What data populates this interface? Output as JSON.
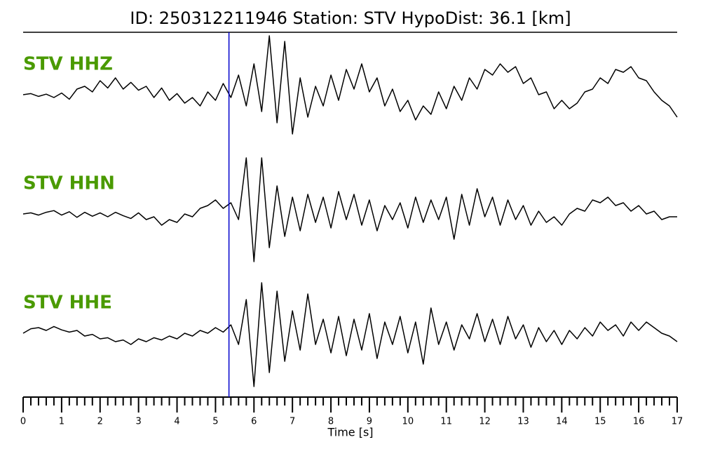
{
  "chart_data": {
    "type": "line",
    "title": "ID: 250312211946   Station: STV   HypoDist:    36.1 [km]",
    "xlabel": "Time [s]",
    "xlim": [
      0,
      17
    ],
    "xticks": [
      0,
      1,
      2,
      3,
      4,
      5,
      6,
      7,
      8,
      9,
      10,
      11,
      12,
      13,
      14,
      15,
      16,
      17
    ],
    "xminorticks": [
      0.2,
      0.4,
      0.6,
      0.8,
      1.2,
      1.4,
      1.6,
      1.8,
      2.2,
      2.4,
      2.6,
      2.8,
      3.2,
      3.4,
      3.6,
      3.8,
      4.2,
      4.4,
      4.6,
      4.8,
      5.2,
      5.4,
      5.6,
      5.8,
      6.2,
      6.4,
      6.6,
      6.8,
      7.2,
      7.4,
      7.6,
      7.8,
      8.2,
      8.4,
      8.6,
      8.8,
      9.2,
      9.4,
      9.6,
      9.8,
      10.2,
      10.4,
      10.6,
      10.8,
      11.2,
      11.4,
      11.6,
      11.8,
      12.2,
      12.4,
      12.6,
      12.8,
      13.2,
      13.4,
      13.6,
      13.8,
      14.2,
      14.4,
      14.6,
      14.8,
      15.2,
      15.4,
      15.6,
      15.8,
      16.2,
      16.4,
      16.6,
      16.8
    ],
    "marker": {
      "x": 5.35,
      "color": "#0000cc"
    },
    "label_color": "#4a9a00",
    "x": [
      0,
      0.2,
      0.4,
      0.6,
      0.8,
      1,
      1.2,
      1.4,
      1.6,
      1.8,
      2,
      2.2,
      2.4,
      2.6,
      2.8,
      3,
      3.2,
      3.4,
      3.6,
      3.8,
      4,
      4.2,
      4.4,
      4.6,
      4.8,
      5,
      5.2,
      5.4,
      5.6,
      5.8,
      6,
      6.2,
      6.4,
      6.6,
      6.8,
      7,
      7.2,
      7.4,
      7.6,
      7.8,
      8,
      8.2,
      8.4,
      8.6,
      8.8,
      9,
      9.2,
      9.4,
      9.6,
      9.8,
      10,
      10.2,
      10.4,
      10.6,
      10.8,
      11,
      11.2,
      11.4,
      11.6,
      11.8,
      12,
      12.2,
      12.4,
      12.6,
      12.8,
      13,
      13.2,
      13.4,
      13.6,
      13.8,
      14,
      14.2,
      14.4,
      14.6,
      14.8,
      15,
      15.2,
      15.4,
      15.6,
      15.8,
      16,
      16.2,
      16.4,
      16.6,
      16.8,
      17
    ],
    "series": [
      {
        "name": "STV HHZ",
        "color": "#000000",
        "values": [
          0,
          0.02,
          -0.03,
          0.01,
          -0.05,
          0.03,
          -0.08,
          0.1,
          0.15,
          0.05,
          0.25,
          0.12,
          0.3,
          0.1,
          0.22,
          0.08,
          0.15,
          -0.05,
          0.12,
          -0.1,
          0.02,
          -0.15,
          -0.05,
          -0.2,
          0.05,
          -0.1,
          0.2,
          -0.05,
          0.35,
          -0.2,
          0.55,
          -0.3,
          1.05,
          -0.5,
          0.95,
          -0.7,
          0.3,
          -0.4,
          0.15,
          -0.2,
          0.35,
          -0.1,
          0.45,
          0.1,
          0.55,
          0.05,
          0.3,
          -0.2,
          0.1,
          -0.3,
          -0.1,
          -0.45,
          -0.2,
          -0.35,
          0.05,
          -0.25,
          0.15,
          -0.1,
          0.3,
          0.1,
          0.45,
          0.35,
          0.55,
          0.4,
          0.5,
          0.2,
          0.3,
          0,
          0.05,
          -0.25,
          -0.1,
          -0.25,
          -0.15,
          0.05,
          0.1,
          0.3,
          0.2,
          0.45,
          0.4,
          0.5,
          0.3,
          0.25,
          0.05,
          -0.1,
          -0.2,
          -0.4
        ]
      },
      {
        "name": "STV HHN",
        "color": "#000000",
        "values": [
          0,
          0.02,
          -0.02,
          0.03,
          0.06,
          -0.02,
          0.04,
          -0.06,
          0.03,
          -0.04,
          0.02,
          -0.05,
          0.03,
          -0.03,
          -0.08,
          0.02,
          -0.1,
          -0.05,
          -0.2,
          -0.1,
          -0.15,
          0,
          -0.05,
          0.1,
          0.15,
          0.25,
          0.1,
          0.2,
          -0.1,
          1.0,
          -0.85,
          1.0,
          -0.6,
          0.5,
          -0.4,
          0.3,
          -0.3,
          0.35,
          -0.15,
          0.3,
          -0.25,
          0.4,
          -0.1,
          0.35,
          -0.2,
          0.25,
          -0.3,
          0.15,
          -0.1,
          0.2,
          -0.25,
          0.3,
          -0.15,
          0.25,
          -0.1,
          0.3,
          -0.45,
          0.35,
          -0.2,
          0.45,
          -0.05,
          0.3,
          -0.2,
          0.25,
          -0.1,
          0.15,
          -0.2,
          0.05,
          -0.15,
          -0.05,
          -0.2,
          0,
          0.1,
          0.05,
          0.25,
          0.2,
          0.3,
          0.15,
          0.2,
          0.05,
          0.15,
          0,
          0.05,
          -0.1,
          -0.05,
          -0.05
        ]
      },
      {
        "name": "STV HHE",
        "color": "#000000",
        "values": [
          0,
          0.08,
          0.1,
          0.05,
          0.12,
          0.06,
          0.02,
          0.05,
          -0.05,
          -0.02,
          -0.1,
          -0.08,
          -0.15,
          -0.12,
          -0.2,
          -0.1,
          -0.15,
          -0.08,
          -0.12,
          -0.05,
          -0.1,
          0,
          -0.05,
          0.05,
          0,
          0.1,
          0.02,
          0.15,
          -0.2,
          0.6,
          -0.95,
          0.9,
          -0.7,
          0.75,
          -0.5,
          0.4,
          -0.3,
          0.7,
          -0.2,
          0.25,
          -0.35,
          0.3,
          -0.4,
          0.25,
          -0.3,
          0.35,
          -0.45,
          0.2,
          -0.2,
          0.3,
          -0.35,
          0.2,
          -0.55,
          0.45,
          -0.2,
          0.2,
          -0.3,
          0.15,
          -0.1,
          0.35,
          -0.15,
          0.25,
          -0.2,
          0.3,
          -0.1,
          0.15,
          -0.25,
          0.1,
          -0.15,
          0.05,
          -0.2,
          0.05,
          -0.1,
          0.1,
          -0.05,
          0.2,
          0.05,
          0.15,
          -0.05,
          0.2,
          0.05,
          0.2,
          0.1,
          0,
          -0.05,
          -0.15
        ]
      }
    ]
  }
}
